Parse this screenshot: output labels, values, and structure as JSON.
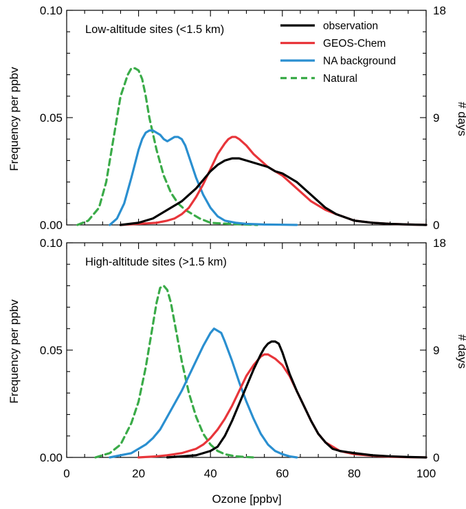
{
  "chart_data": {
    "type": "line",
    "xlabel": "Ozone [ppbv]",
    "ylabel": "Frequency per ppbv",
    "y2label": "# days",
    "xlim": [
      0,
      100
    ],
    "ylim": [
      0,
      0.1
    ],
    "y2lim": [
      0,
      18
    ],
    "xticks": [
      "0",
      "20",
      "40",
      "60",
      "80",
      "100"
    ],
    "yticks": [
      "0.00",
      "0.05",
      "0.10"
    ],
    "y2ticks": [
      "0",
      "9",
      "18"
    ],
    "grid": false,
    "legend_placement": "top-right",
    "legend": [
      {
        "name": "observation",
        "color": "#000000",
        "dash": "solid"
      },
      {
        "name": "GEOS-Chem",
        "color": "#e8353a",
        "dash": "solid"
      },
      {
        "name": "NA background",
        "color": "#2a8fd0",
        "dash": "solid"
      },
      {
        "name": "Natural",
        "color": "#3aab48",
        "dash": "dashed"
      }
    ],
    "panels": [
      {
        "title": "Low-altitude sites (<1.5 km)",
        "series": [
          {
            "name": "Natural",
            "color": "#3aab48",
            "dash": "dashed",
            "x": [
              3,
              6,
              9,
              11,
              13,
              15,
              17,
              18,
              19,
              20,
              21,
              22,
              23,
              25,
              27,
              29,
              31,
              33,
              35,
              37,
              40,
              45,
              50,
              53
            ],
            "y": [
              0.0,
              0.002,
              0.008,
              0.02,
              0.04,
              0.06,
              0.07,
              0.073,
              0.073,
              0.072,
              0.068,
              0.06,
              0.05,
              0.035,
              0.023,
              0.015,
              0.01,
              0.007,
              0.005,
              0.003,
              0.001,
              0.0005,
              0.0002,
              0.0
            ]
          },
          {
            "name": "NA background",
            "color": "#2a8fd0",
            "dash": "solid",
            "x": [
              12,
              14,
              16,
              18,
              20,
              21,
              22,
              23,
              24,
              25,
              26,
              27,
              28,
              29,
              30,
              31,
              32,
              33,
              34,
              36,
              38,
              40,
              42,
              44,
              47,
              50,
              55,
              60,
              64
            ],
            "y": [
              0.0,
              0.003,
              0.01,
              0.022,
              0.035,
              0.04,
              0.043,
              0.044,
              0.044,
              0.043,
              0.042,
              0.04,
              0.039,
              0.04,
              0.041,
              0.041,
              0.04,
              0.037,
              0.032,
              0.022,
              0.014,
              0.008,
              0.004,
              0.002,
              0.001,
              0.0005,
              0.0002,
              0.0001,
              0.0
            ]
          },
          {
            "name": "GEOS-Chem",
            "color": "#e8353a",
            "dash": "solid",
            "x": [
              15,
              20,
              25,
              28,
              30,
              32,
              34,
              36,
              38,
              40,
              42,
              44,
              45,
              46,
              47,
              48,
              50,
              52,
              54,
              56,
              58,
              60,
              62,
              64,
              66,
              68,
              70,
              72,
              75,
              80,
              85,
              90,
              95,
              100
            ],
            "y": [
              0.0,
              0.0005,
              0.001,
              0.002,
              0.003,
              0.005,
              0.008,
              0.013,
              0.019,
              0.026,
              0.033,
              0.038,
              0.04,
              0.041,
              0.041,
              0.04,
              0.037,
              0.033,
              0.03,
              0.027,
              0.025,
              0.023,
              0.02,
              0.017,
              0.014,
              0.011,
              0.009,
              0.007,
              0.005,
              0.002,
              0.001,
              0.0005,
              0.0002,
              0.0
            ]
          },
          {
            "name": "observation",
            "color": "#000000",
            "dash": "solid",
            "x": [
              15,
              20,
              22,
              24,
              26,
              28,
              30,
              32,
              34,
              36,
              38,
              40,
              42,
              44,
              46,
              48,
              50,
              52,
              54,
              56,
              58,
              60,
              62,
              64,
              66,
              68,
              70,
              72,
              75,
              80,
              85,
              90,
              95,
              100
            ],
            "y": [
              0.0,
              0.001,
              0.002,
              0.003,
              0.005,
              0.007,
              0.009,
              0.011,
              0.014,
              0.017,
              0.021,
              0.025,
              0.028,
              0.03,
              0.031,
              0.031,
              0.03,
              0.029,
              0.028,
              0.027,
              0.025,
              0.024,
              0.022,
              0.02,
              0.017,
              0.014,
              0.011,
              0.008,
              0.005,
              0.002,
              0.001,
              0.0005,
              0.0002,
              0.0
            ]
          }
        ]
      },
      {
        "title": "High-altitude sites (>1.5 km)",
        "series": [
          {
            "name": "Natural",
            "color": "#3aab48",
            "dash": "dashed",
            "x": [
              8,
              12,
              15,
              18,
              20,
              22,
              24,
              25,
              26,
              27,
              28,
              29,
              30,
              31,
              32,
              34,
              36,
              38,
              40,
              42,
              44,
              47,
              50,
              52
            ],
            "y": [
              0.0,
              0.002,
              0.006,
              0.016,
              0.026,
              0.042,
              0.062,
              0.072,
              0.079,
              0.08,
              0.078,
              0.072,
              0.063,
              0.054,
              0.045,
              0.03,
              0.019,
              0.011,
              0.006,
              0.003,
              0.0015,
              0.0005,
              0.0002,
              0.0
            ]
          },
          {
            "name": "NA background",
            "color": "#2a8fd0",
            "dash": "solid",
            "x": [
              12,
              15,
              18,
              20,
              22,
              24,
              26,
              28,
              30,
              32,
              34,
              36,
              38,
              40,
              41,
              42,
              43,
              44,
              46,
              48,
              50,
              52,
              54,
              56,
              58,
              60,
              62,
              64
            ],
            "y": [
              0.0,
              0.001,
              0.002,
              0.004,
              0.006,
              0.009,
              0.013,
              0.019,
              0.025,
              0.031,
              0.038,
              0.045,
              0.052,
              0.058,
              0.06,
              0.059,
              0.058,
              0.054,
              0.045,
              0.035,
              0.026,
              0.018,
              0.011,
              0.006,
              0.003,
              0.0015,
              0.0005,
              0.0
            ]
          },
          {
            "name": "GEOS-Chem",
            "color": "#e8353a",
            "dash": "solid",
            "x": [
              20,
              25,
              28,
              30,
              32,
              34,
              36,
              38,
              40,
              42,
              44,
              46,
              48,
              50,
              52,
              54,
              55,
              56,
              57,
              58,
              60,
              62,
              64,
              66,
              68,
              70,
              72,
              74,
              76,
              80,
              85,
              90,
              95,
              100
            ],
            "y": [
              0.0,
              0.0005,
              0.001,
              0.0015,
              0.002,
              0.003,
              0.004,
              0.006,
              0.009,
              0.013,
              0.018,
              0.024,
              0.031,
              0.038,
              0.043,
              0.047,
              0.048,
              0.048,
              0.047,
              0.046,
              0.043,
              0.038,
              0.031,
              0.024,
              0.017,
              0.011,
              0.007,
              0.005,
              0.003,
              0.0015,
              0.0008,
              0.0003,
              0.0001,
              0.0
            ]
          },
          {
            "name": "observation",
            "color": "#000000",
            "dash": "solid",
            "x": [
              28,
              32,
              36,
              38,
              40,
              42,
              44,
              46,
              48,
              50,
              52,
              54,
              55,
              56,
              57,
              58,
              59,
              60,
              61,
              62,
              64,
              66,
              68,
              70,
              72,
              74,
              76,
              80,
              85,
              90,
              95,
              100
            ],
            "y": [
              0.0,
              0.0005,
              0.001,
              0.002,
              0.003,
              0.005,
              0.01,
              0.017,
              0.025,
              0.033,
              0.041,
              0.048,
              0.051,
              0.053,
              0.054,
              0.054,
              0.053,
              0.049,
              0.044,
              0.039,
              0.031,
              0.024,
              0.017,
              0.011,
              0.007,
              0.004,
              0.003,
              0.002,
              0.001,
              0.0005,
              0.0002,
              0.0
            ]
          }
        ]
      }
    ]
  }
}
